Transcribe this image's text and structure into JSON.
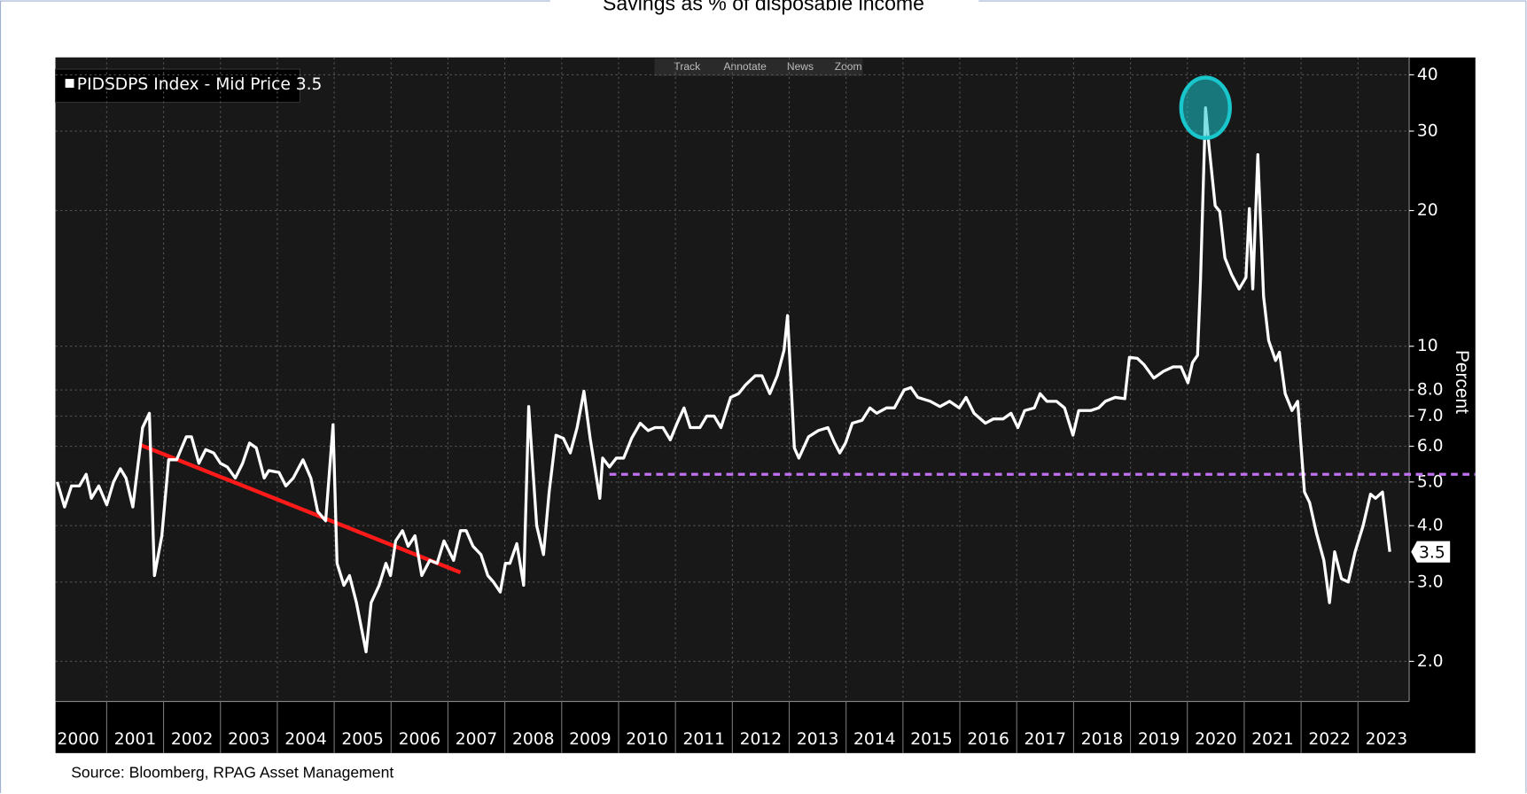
{
  "chart_data": {
    "type": "line",
    "title": "Savings as % of disposable income",
    "source": "Source: Bloomberg, RPAG Asset Management",
    "toolbar": [
      "Track",
      "Annotate",
      "News",
      "Zoom"
    ],
    "y_label": "Percent",
    "log_scale": true,
    "grid": true,
    "legend": "top-left",
    "xlim": [
      2000.1,
      2023.9
    ],
    "xticks": [
      2000,
      2001,
      2002,
      2003,
      2004,
      2005,
      2006,
      2007,
      2008,
      2009,
      2010,
      2011,
      2012,
      2013,
      2014,
      2015,
      2016,
      2017,
      2018,
      2019,
      2020,
      2021,
      2022,
      2023
    ],
    "ylim": [
      1.63,
      43.7
    ],
    "yticks": [
      {
        "value": 2,
        "label": "2.0"
      },
      {
        "value": 3,
        "label": "3.0"
      },
      {
        "value": 4,
        "label": "4.0"
      },
      {
        "value": 5,
        "label": "5.0"
      },
      {
        "value": 6,
        "label": "6.0"
      },
      {
        "value": 7,
        "label": "7.0"
      },
      {
        "value": 8,
        "label": "8.0"
      },
      10,
      20,
      30,
      40
    ],
    "x": [
      2000.13,
      2000.26,
      2000.38,
      2000.52,
      2000.64,
      2000.73,
      2000.86,
      2001.0,
      2001.12,
      2001.24,
      2001.34,
      2001.46,
      2001.63,
      2001.75,
      2001.84,
      2001.97,
      2002.09,
      2002.23,
      2002.4,
      2002.49,
      2002.62,
      2002.74,
      2002.88,
      2003.0,
      2003.12,
      2003.26,
      2003.39,
      2003.51,
      2003.63,
      2003.77,
      2003.85,
      2004.03,
      2004.15,
      2004.28,
      2004.45,
      2004.59,
      2004.71,
      2004.85,
      2004.98,
      2005.05,
      2005.17,
      2005.27,
      2005.39,
      2005.56,
      2005.65,
      2005.79,
      2005.91,
      2005.99,
      2006.08,
      2006.2,
      2006.3,
      2006.42,
      2006.54,
      2006.68,
      2006.81,
      2006.93,
      2007.1,
      2007.22,
      2007.32,
      2007.44,
      2007.58,
      2007.7,
      2007.8,
      2007.92,
      2008.01,
      2008.09,
      2008.21,
      2008.33,
      2008.42,
      2008.56,
      2008.68,
      2008.78,
      2008.9,
      2009.03,
      2009.15,
      2009.27,
      2009.39,
      2009.5,
      2009.67,
      2009.72,
      2009.84,
      2009.96,
      2010.09,
      2010.23,
      2010.38,
      2010.52,
      2010.64,
      2010.78,
      2010.91,
      2011.03,
      2011.15,
      2011.26,
      2011.43,
      2011.55,
      2011.68,
      2011.8,
      2011.97,
      2012.11,
      2012.23,
      2012.4,
      2012.52,
      2012.66,
      2012.79,
      2012.91,
      2012.97,
      2013.09,
      2013.17,
      2013.34,
      2013.51,
      2013.68,
      2013.8,
      2013.89,
      2013.99,
      2014.11,
      2014.28,
      2014.42,
      2014.54,
      2014.71,
      2014.85,
      2015.02,
      2015.14,
      2015.26,
      2015.48,
      2015.65,
      2015.82,
      2015.99,
      2016.11,
      2016.25,
      2016.45,
      2016.59,
      2016.76,
      2016.9,
      2017.02,
      2017.14,
      2017.31,
      2017.41,
      2017.53,
      2017.7,
      2017.84,
      2017.99,
      2018.09,
      2018.3,
      2018.44,
      2018.56,
      2018.73,
      2018.9,
      2018.98,
      2019.12,
      2019.24,
      2019.41,
      2019.58,
      2019.75,
      2019.89,
      2020.01,
      2020.09,
      2020.18,
      2020.23,
      2020.32,
      2020.38,
      2020.49,
      2020.57,
      2020.66,
      2020.78,
      2020.91,
      2021.03,
      2021.09,
      2021.15,
      2021.24,
      2021.34,
      2021.43,
      2021.55,
      2021.62,
      2021.72,
      2021.84,
      2021.94,
      2022.06,
      2022.15,
      2022.27,
      2022.4,
      2022.5,
      2022.59,
      2022.71,
      2022.83,
      2022.95,
      2023.09,
      2023.22,
      2023.31,
      2023.43,
      2023.56
    ],
    "series": [
      {
        "name": "PIDSDPS Index - Mid Price 3.5",
        "color": "#ffffff",
        "values": [
          5.0,
          4.4,
          4.9,
          4.9,
          5.2,
          4.6,
          4.9,
          4.45,
          5.0,
          5.35,
          5.1,
          4.4,
          6.6,
          7.1,
          3.1,
          3.8,
          5.6,
          5.6,
          6.3,
          6.3,
          5.5,
          5.9,
          5.8,
          5.5,
          5.4,
          5.1,
          5.5,
          6.1,
          5.95,
          5.1,
          5.3,
          5.25,
          4.9,
          5.1,
          5.6,
          5.1,
          4.3,
          4.1,
          6.7,
          3.3,
          2.95,
          3.1,
          2.7,
          2.1,
          2.7,
          2.95,
          3.3,
          3.1,
          3.7,
          3.9,
          3.6,
          3.8,
          3.1,
          3.35,
          3.3,
          3.7,
          3.35,
          3.9,
          3.9,
          3.6,
          3.45,
          3.1,
          3.0,
          2.85,
          3.3,
          3.3,
          3.65,
          2.95,
          7.35,
          4.0,
          3.45,
          4.75,
          6.35,
          6.25,
          5.8,
          6.6,
          7.95,
          6.25,
          4.6,
          5.65,
          5.4,
          5.65,
          5.65,
          6.25,
          6.75,
          6.5,
          6.6,
          6.6,
          6.2,
          6.75,
          7.3,
          6.6,
          6.6,
          7.0,
          7.0,
          6.6,
          7.7,
          7.85,
          8.2,
          8.6,
          8.6,
          7.85,
          8.6,
          9.8,
          11.7,
          5.95,
          5.65,
          6.3,
          6.5,
          6.6,
          6.1,
          5.8,
          6.1,
          6.75,
          6.85,
          7.3,
          7.1,
          7.3,
          7.3,
          8.0,
          8.1,
          7.7,
          7.55,
          7.35,
          7.55,
          7.3,
          7.7,
          7.1,
          6.75,
          6.9,
          6.9,
          7.1,
          6.6,
          7.2,
          7.3,
          7.85,
          7.55,
          7.55,
          7.3,
          6.35,
          7.2,
          7.2,
          7.3,
          7.55,
          7.7,
          7.65,
          9.45,
          9.4,
          9.1,
          8.5,
          8.8,
          9.0,
          9.0,
          8.3,
          9.2,
          9.55,
          13.9,
          33.8,
          27.9,
          20.5,
          19.9,
          15.7,
          14.4,
          13.4,
          14.2,
          20.2,
          13.4,
          26.6,
          12.9,
          10.3,
          9.3,
          9.7,
          7.85,
          7.2,
          7.55,
          4.75,
          4.5,
          3.85,
          3.35,
          2.7,
          3.5,
          3.05,
          3.0,
          3.5,
          4.0,
          4.7,
          4.6,
          4.75,
          3.5
        ]
      }
    ],
    "last_value": {
      "value": 3.5,
      "label": "3.5"
    },
    "trend_line": {
      "x": [
        2001.58,
        2007.22
      ],
      "values": [
        6.05,
        3.15
      ],
      "color": "#ff1a1a"
    },
    "reference_line": {
      "value": 5.2,
      "x_start": 2009.84,
      "color": "#c070f0"
    },
    "highlight": {
      "x": 2020.32,
      "value": 33.8,
      "color": "#19c6cc"
    }
  }
}
